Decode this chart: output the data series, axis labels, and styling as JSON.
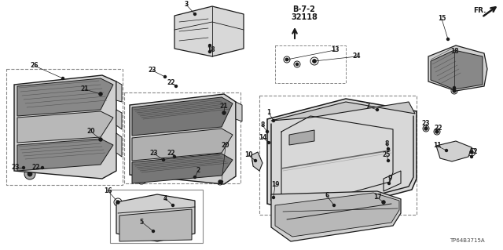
{
  "bg_color": "#ffffff",
  "line_color": "#1a1a1a",
  "gray_color": "#888888",
  "dark_gray": "#444444",
  "part_number_text": "TP64B3715A",
  "diagram_ref": "B-7-2",
  "diagram_num": "32118",
  "figsize": [
    6.4,
    3.19
  ],
  "dpi": 100,
  "labels": [
    [
      "3",
      237,
      8
    ],
    [
      "18",
      265,
      68
    ],
    [
      "22",
      222,
      108
    ],
    [
      "23",
      196,
      94
    ],
    [
      "26",
      44,
      88
    ],
    [
      "21",
      108,
      118
    ],
    [
      "20",
      116,
      168
    ],
    [
      "23",
      20,
      214
    ],
    [
      "22",
      46,
      214
    ],
    [
      "2",
      253,
      220
    ],
    [
      "21",
      285,
      140
    ],
    [
      "20",
      287,
      190
    ],
    [
      "23",
      196,
      200
    ],
    [
      "22",
      218,
      200
    ],
    [
      "16",
      137,
      243
    ],
    [
      "4",
      205,
      255
    ],
    [
      "5",
      178,
      285
    ],
    [
      "1",
      344,
      148
    ],
    [
      "8",
      336,
      163
    ],
    [
      "14",
      336,
      178
    ],
    [
      "10",
      324,
      195
    ],
    [
      "7",
      468,
      140
    ],
    [
      "8",
      490,
      185
    ],
    [
      "25",
      490,
      200
    ],
    [
      "9",
      494,
      228
    ],
    [
      "17",
      480,
      255
    ],
    [
      "6",
      418,
      252
    ],
    [
      "19",
      352,
      238
    ],
    [
      "13",
      428,
      68
    ],
    [
      "24",
      452,
      74
    ],
    [
      "15",
      562,
      28
    ],
    [
      "18",
      576,
      68
    ],
    [
      "23",
      542,
      162
    ],
    [
      "22",
      558,
      168
    ],
    [
      "11",
      558,
      190
    ],
    [
      "12",
      600,
      196
    ]
  ]
}
